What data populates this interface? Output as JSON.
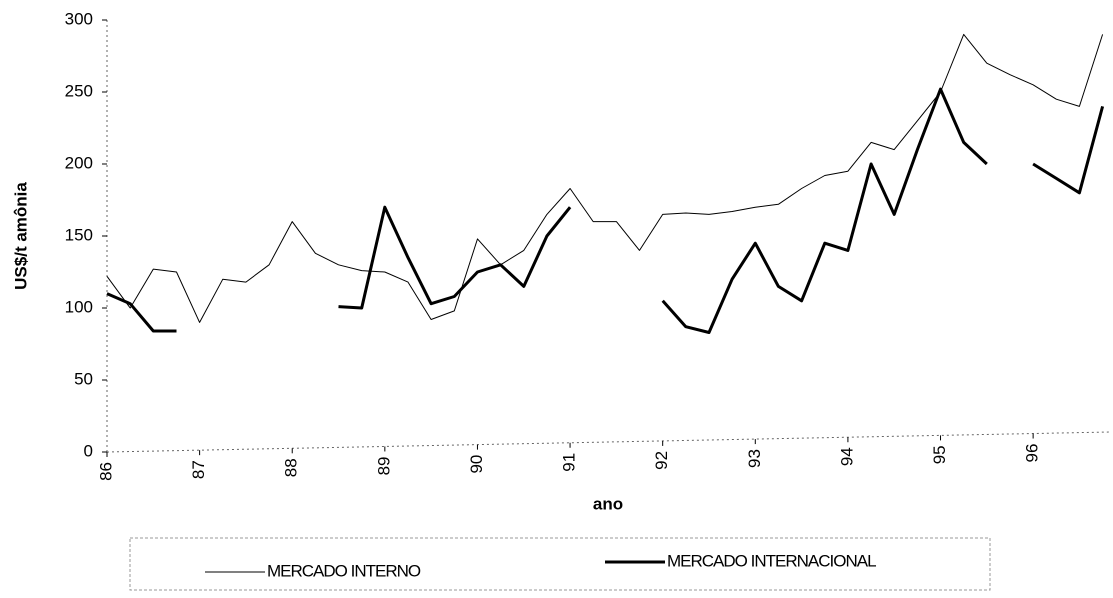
{
  "chart_data": {
    "type": "line",
    "x": [
      86,
      86.25,
      86.5,
      86.75,
      87,
      87.25,
      87.5,
      87.75,
      88,
      88.25,
      88.5,
      88.75,
      89,
      89.25,
      89.5,
      89.75,
      90,
      90.25,
      90.5,
      90.75,
      91,
      91.25,
      91.5,
      91.75,
      92,
      92.25,
      92.5,
      92.75,
      93,
      93.25,
      93.5,
      93.75,
      94,
      94.25,
      94.5,
      94.75,
      95,
      95.25,
      95.5,
      95.75,
      96,
      96.25,
      96.5,
      96.75
    ],
    "series": [
      {
        "name": "MERCADO INTERNO",
        "color": "#000000",
        "width": 1,
        "values": [
          122,
          100,
          127,
          125,
          90,
          120,
          118,
          130,
          160,
          138,
          130,
          126,
          125,
          118,
          92,
          98,
          148,
          130,
          140,
          165,
          183,
          160,
          160,
          140,
          165,
          166,
          165,
          167,
          170,
          172,
          183,
          192,
          195,
          215,
          210,
          230,
          250,
          290,
          270,
          262,
          255,
          245,
          240,
          290
        ]
      },
      {
        "name": "MERCADO INTERNACIONAL",
        "color": "#000000",
        "width": 3,
        "values": [
          110,
          103,
          84,
          84,
          null,
          null,
          null,
          null,
          null,
          null,
          101,
          100,
          170,
          135,
          103,
          108,
          125,
          130,
          115,
          150,
          170,
          null,
          null,
          null,
          105,
          87,
          83,
          120,
          145,
          115,
          105,
          145,
          140,
          200,
          165,
          210,
          252,
          215,
          200,
          null,
          200,
          190,
          180,
          240
        ]
      }
    ],
    "xlabel": "ano",
    "ylabel": "US$/t amônia",
    "xlim": [
      86,
      96.83
    ],
    "xticks": [
      86,
      87,
      88,
      89,
      90,
      91,
      92,
      93,
      94,
      95,
      96
    ],
    "ylim": [
      0,
      300
    ],
    "yticks": [
      0,
      50,
      100,
      150,
      200,
      250,
      300
    ]
  }
}
